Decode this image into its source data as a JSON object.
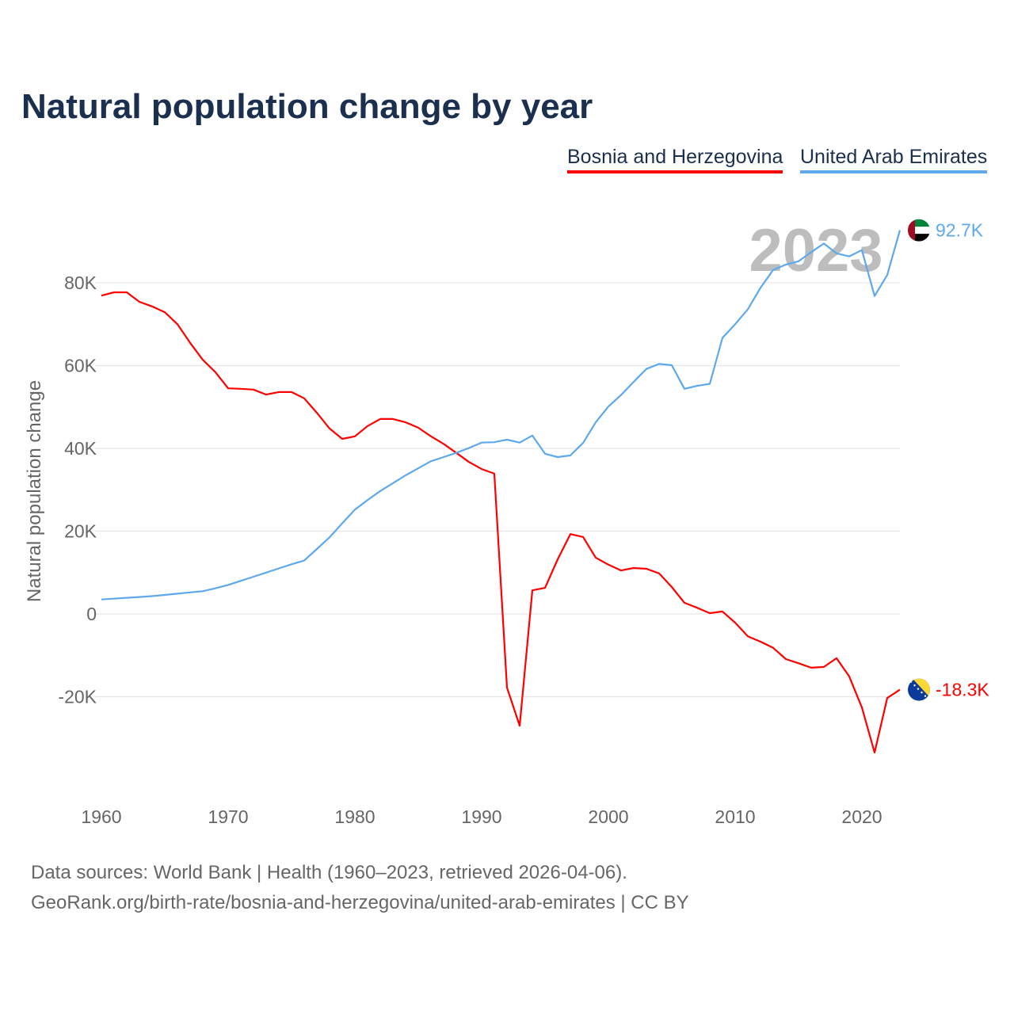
{
  "chart_data": {
    "type": "line",
    "title": "Natural population change by year",
    "xlabel": "",
    "ylabel": "Natural population change",
    "xlim": [
      1960,
      2023
    ],
    "ylim": [
      -36000,
      90000
    ],
    "x_ticks": [
      "1960",
      "1970",
      "1980",
      "1990",
      "2000",
      "2010",
      "2020"
    ],
    "y_ticks": [
      {
        "v": -20000,
        "label": "-20K"
      },
      {
        "v": 0,
        "label": "0"
      },
      {
        "v": 20000,
        "label": "20K"
      },
      {
        "v": 40000,
        "label": "40K"
      },
      {
        "v": 60000,
        "label": "60K"
      },
      {
        "v": 80000,
        "label": "80K"
      }
    ],
    "grid": true,
    "legend_placement": "top-right",
    "year_watermark": "2023",
    "x": [
      1960,
      1961,
      1962,
      1963,
      1964,
      1965,
      1966,
      1967,
      1968,
      1969,
      1970,
      1971,
      1972,
      1973,
      1974,
      1975,
      1976,
      1977,
      1978,
      1979,
      1980,
      1981,
      1982,
      1983,
      1984,
      1985,
      1986,
      1987,
      1988,
      1989,
      1990,
      1991,
      1992,
      1993,
      1994,
      1995,
      1996,
      1997,
      1998,
      1999,
      2000,
      2001,
      2002,
      2003,
      2004,
      2005,
      2006,
      2007,
      2008,
      2009,
      2010,
      2011,
      2012,
      2013,
      2014,
      2015,
      2016,
      2017,
      2018,
      2019,
      2020,
      2021,
      2022,
      2023
    ],
    "series": [
      {
        "name": "Bosnia and Herzegovina",
        "color": "#ff0000",
        "end_label": "-18.3K",
        "flag": "bosnia-flag",
        "values": [
          76900,
          77700,
          77700,
          75400,
          74300,
          72900,
          70000,
          65500,
          61400,
          58400,
          54500,
          54400,
          54200,
          53000,
          53600,
          53600,
          52100,
          48600,
          44800,
          42300,
          42900,
          45400,
          47100,
          47100,
          46300,
          45000,
          42900,
          41100,
          38900,
          36700,
          35000,
          33900,
          -17800,
          -27000,
          5700,
          6300,
          13200,
          19300,
          18600,
          13600,
          11900,
          10500,
          11100,
          10900,
          9800,
          6500,
          2700,
          1500,
          200,
          600,
          -2100,
          -5400,
          -6700,
          -8200,
          -10900,
          -11900,
          -13000,
          -12800,
          -10700,
          -15100,
          -22600,
          -33500,
          -20300,
          -18300
        ]
      },
      {
        "name": "United Arab Emirates",
        "color": "#5ea8ec",
        "end_label": "92.7K",
        "flag": "uae-flag",
        "values": [
          3500,
          3700,
          3900,
          4100,
          4300,
          4600,
          4900,
          5200,
          5500,
          6200,
          7000,
          8000,
          9000,
          10000,
          11000,
          12000,
          12900,
          15700,
          18500,
          21900,
          25200,
          27500,
          29700,
          31600,
          33500,
          35200,
          36900,
          37900,
          38900,
          40100,
          41400,
          41500,
          42100,
          41400,
          43100,
          38700,
          37900,
          38300,
          41300,
          46300,
          50100,
          52900,
          56100,
          59200,
          60400,
          60100,
          54400,
          55100,
          55600,
          66700,
          70000,
          73600,
          78800,
          83100,
          84400,
          85200,
          87400,
          89500,
          87100,
          86400,
          87900,
          76800,
          81900,
          92700
        ]
      }
    ]
  },
  "footer": {
    "line1": "Data sources: World Bank | Health (1960–2023, retrieved 2026-04-06).",
    "line2": "GeoRank.org/birth-rate/bosnia-and-herzegovina/united-arab-emirates | CC BY"
  }
}
